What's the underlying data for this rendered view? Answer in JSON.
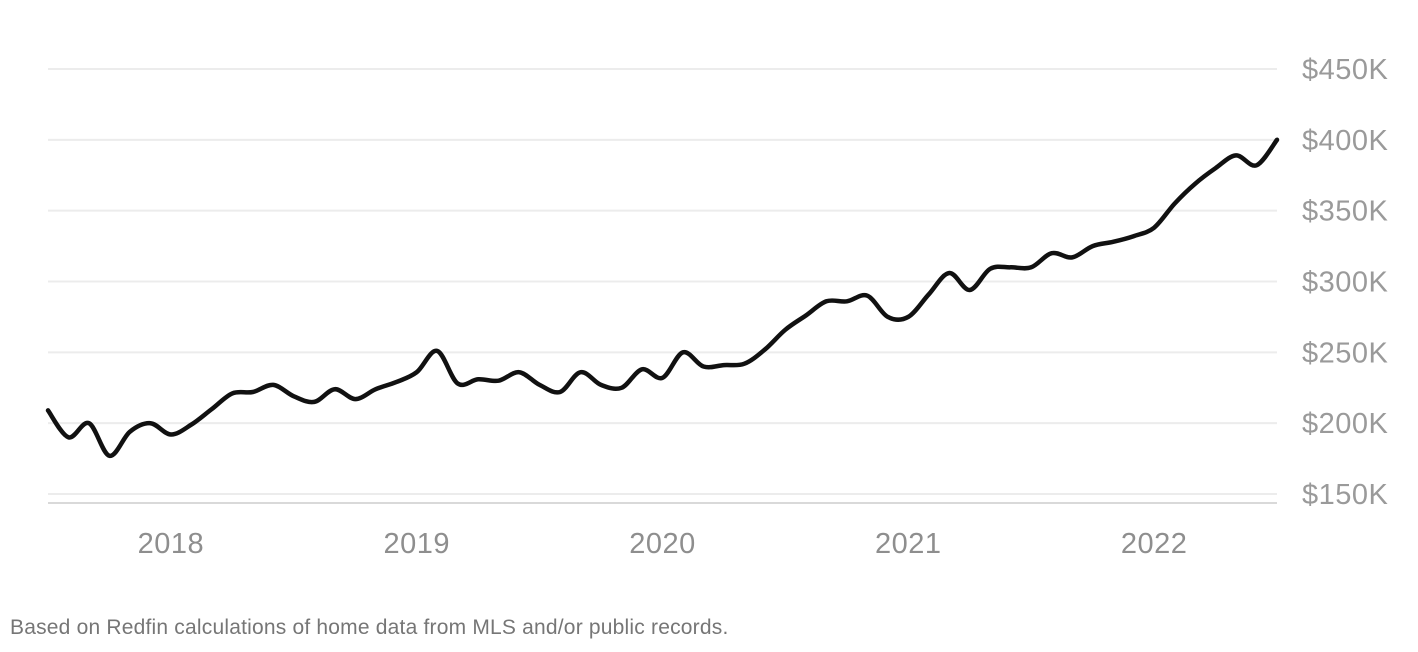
{
  "footnote": "Based on Redfin calculations of home data from MLS and/or public records.",
  "colors": {
    "background": "#ffffff",
    "line": "#111111",
    "gridline": "#ececec",
    "axis_baseline": "#d9d9d9",
    "y_label": "#9a9a9a",
    "x_label": "#8e8e8e",
    "footnote": "#767676"
  },
  "chart_data": {
    "type": "line",
    "title": "",
    "xlabel": "",
    "ylabel": "",
    "unit": "$K",
    "frequency": "monthly",
    "grid": "horizontal-only",
    "legend": "none",
    "ylim": [
      150,
      450
    ],
    "x": [
      "2017-07",
      "2017-08",
      "2017-09",
      "2017-10",
      "2017-11",
      "2017-12",
      "2018-01",
      "2018-02",
      "2018-03",
      "2018-04",
      "2018-05",
      "2018-06",
      "2018-07",
      "2018-08",
      "2018-09",
      "2018-10",
      "2018-11",
      "2018-12",
      "2019-01",
      "2019-02",
      "2019-03",
      "2019-04",
      "2019-05",
      "2019-06",
      "2019-07",
      "2019-08",
      "2019-09",
      "2019-10",
      "2019-11",
      "2019-12",
      "2020-01",
      "2020-02",
      "2020-03",
      "2020-04",
      "2020-05",
      "2020-06",
      "2020-07",
      "2020-08",
      "2020-09",
      "2020-10",
      "2020-11",
      "2020-12",
      "2021-01",
      "2021-02",
      "2021-03",
      "2021-04",
      "2021-05",
      "2021-06",
      "2021-07",
      "2021-08",
      "2021-09",
      "2021-10",
      "2021-11",
      "2021-12",
      "2022-01",
      "2022-02",
      "2022-03",
      "2022-04",
      "2022-05",
      "2022-06",
      "2022-07"
    ],
    "values": [
      209,
      190,
      200,
      177,
      194,
      200,
      192,
      199,
      210,
      221,
      222,
      227,
      219,
      215,
      224,
      217,
      224,
      229,
      236,
      251,
      228,
      231,
      230,
      236,
      227,
      222,
      236,
      227,
      225,
      238,
      232,
      250,
      240,
      241,
      242,
      252,
      266,
      276,
      286,
      286,
      290,
      275,
      275,
      291,
      306,
      294,
      309,
      310,
      310,
      320,
      317,
      325,
      328,
      332,
      338,
      355,
      369,
      380,
      389,
      382,
      400
    ],
    "y_ticks": [
      {
        "label": "$450K",
        "value": 450
      },
      {
        "label": "$400K",
        "value": 400
      },
      {
        "label": "$350K",
        "value": 350
      },
      {
        "label": "$300K",
        "value": 300
      },
      {
        "label": "$250K",
        "value": 250
      },
      {
        "label": "$200K",
        "value": 200
      },
      {
        "label": "$150K",
        "value": 150
      }
    ],
    "x_ticks": [
      {
        "label": "2018",
        "month_index": 6
      },
      {
        "label": "2019",
        "month_index": 18
      },
      {
        "label": "2020",
        "month_index": 30
      },
      {
        "label": "2021",
        "month_index": 42
      },
      {
        "label": "2022",
        "month_index": 54
      }
    ]
  }
}
